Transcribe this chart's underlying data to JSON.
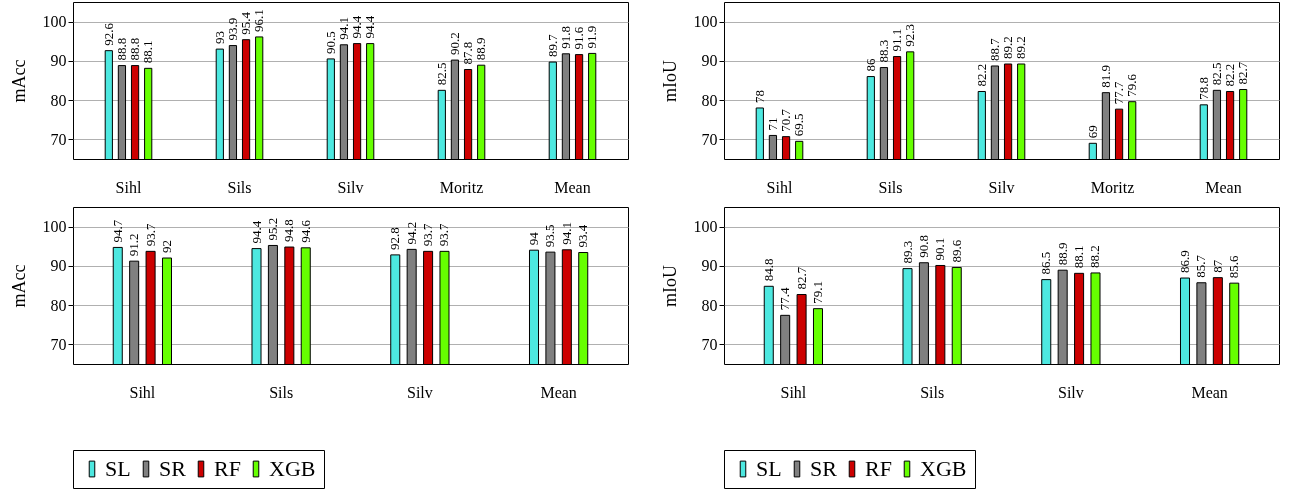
{
  "chart_data": [
    {
      "type": "bar",
      "ylabel": "mAcc",
      "categories": [
        "Sihl",
        "Sils",
        "Silv",
        "Moritz",
        "Mean"
      ],
      "ylim": [
        65,
        105
      ],
      "yticks": [
        70,
        80,
        90,
        100
      ],
      "grid": "y",
      "data_labels": true,
      "series": [
        {
          "color": "#4de8e0",
          "values": [
            92.6,
            93,
            90.5,
            82.5,
            89.7
          ]
        },
        {
          "color": "#808080",
          "values": [
            88.8,
            93.9,
            94.1,
            90.2,
            91.8
          ]
        },
        {
          "color": "#cc0000",
          "values": [
            88.8,
            95.4,
            94.4,
            87.8,
            91.6
          ]
        },
        {
          "color": "#66ff00",
          "values": [
            88.1,
            96.1,
            94.4,
            88.9,
            91.9
          ]
        }
      ]
    },
    {
      "type": "bar",
      "ylabel": "mIoU",
      "categories": [
        "Sihl",
        "Sils",
        "Silv",
        "Moritz",
        "Mean"
      ],
      "ylim": [
        65,
        105
      ],
      "yticks": [
        70,
        80,
        90,
        100
      ],
      "grid": "y",
      "data_labels": true,
      "series": [
        {
          "color": "#4de8e0",
          "values": [
            78,
            86,
            82.2,
            69,
            78.8
          ]
        },
        {
          "color": "#808080",
          "values": [
            71,
            88.3,
            88.7,
            81.9,
            82.5
          ]
        },
        {
          "color": "#cc0000",
          "values": [
            70.7,
            91.1,
            89.2,
            77.7,
            82.2
          ]
        },
        {
          "color": "#66ff00",
          "values": [
            69.5,
            92.3,
            89.2,
            79.6,
            82.7
          ]
        }
      ]
    },
    {
      "type": "bar",
      "ylabel": "mAcc",
      "categories": [
        "Sihl",
        "Sils",
        "Silv",
        "Mean"
      ],
      "ylim": [
        65,
        105
      ],
      "yticks": [
        70,
        80,
        90,
        100
      ],
      "grid": "y",
      "data_labels": true,
      "legend": "bottom",
      "series": [
        {
          "name": "SL",
          "color": "#4de8e0",
          "values": [
            94.7,
            94.4,
            92.8,
            94
          ]
        },
        {
          "name": "SR",
          "color": "#808080",
          "values": [
            91.2,
            95.2,
            94.2,
            93.5
          ]
        },
        {
          "name": "RF",
          "color": "#cc0000",
          "values": [
            93.7,
            94.8,
            93.7,
            94.1
          ]
        },
        {
          "name": "XGB",
          "color": "#66ff00",
          "values": [
            92,
            94.6,
            93.7,
            93.4
          ]
        }
      ]
    },
    {
      "type": "bar",
      "ylabel": "mIoU",
      "categories": [
        "Sihl",
        "Sils",
        "Silv",
        "Mean"
      ],
      "ylim": [
        65,
        105
      ],
      "yticks": [
        70,
        80,
        90,
        100
      ],
      "grid": "y",
      "data_labels": true,
      "legend": "bottom",
      "series": [
        {
          "name": "SL",
          "color": "#4de8e0",
          "values": [
            84.8,
            89.3,
            86.5,
            86.9
          ]
        },
        {
          "name": "SR",
          "color": "#808080",
          "values": [
            77.4,
            90.8,
            88.9,
            85.7
          ]
        },
        {
          "name": "RF",
          "color": "#cc0000",
          "values": [
            82.7,
            90.1,
            88.1,
            87
          ]
        },
        {
          "name": "XGB",
          "color": "#66ff00",
          "values": [
            79.1,
            89.6,
            88.2,
            85.6
          ]
        }
      ]
    }
  ]
}
